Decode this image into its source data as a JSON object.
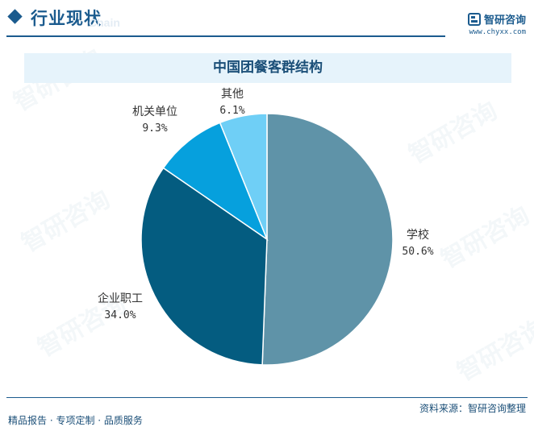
{
  "header": {
    "section_title": "行业现状",
    "ghost_text": "Chain",
    "brand_name": "智研咨询",
    "brand_url": "www.chyxx.com"
  },
  "chart_data": {
    "type": "pie",
    "title": "中国团餐客群结构",
    "slices": [
      {
        "label": "学校",
        "value": 50.6,
        "pct_text": "50.6%",
        "color": "#5f93a8"
      },
      {
        "label": "企业职工",
        "value": 34.0,
        "pct_text": "34.0%",
        "color": "#045c80"
      },
      {
        "label": "机关单位",
        "value": 9.3,
        "pct_text": "9.3%",
        "color": "#06a0dd"
      },
      {
        "label": "其他",
        "value": 6.1,
        "pct_text": "6.1%",
        "color": "#6fcff6"
      }
    ],
    "start": "12 o'clock",
    "direction": "clockwise"
  },
  "footer": {
    "source": "资料来源：智研咨询整理",
    "services": "精品报告 · 专项定制 · 品质服务"
  },
  "watermark": "智研咨询"
}
